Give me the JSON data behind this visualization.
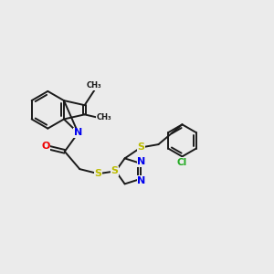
{
  "background_color": "#ebebeb",
  "bond_color": "#1a1a1a",
  "atom_colors": {
    "N": "#0000ee",
    "O": "#ee0000",
    "S": "#bbbb00",
    "Cl": "#22aa22",
    "C": "#1a1a1a"
  },
  "figsize": [
    3.0,
    3.0
  ],
  "dpi": 100
}
